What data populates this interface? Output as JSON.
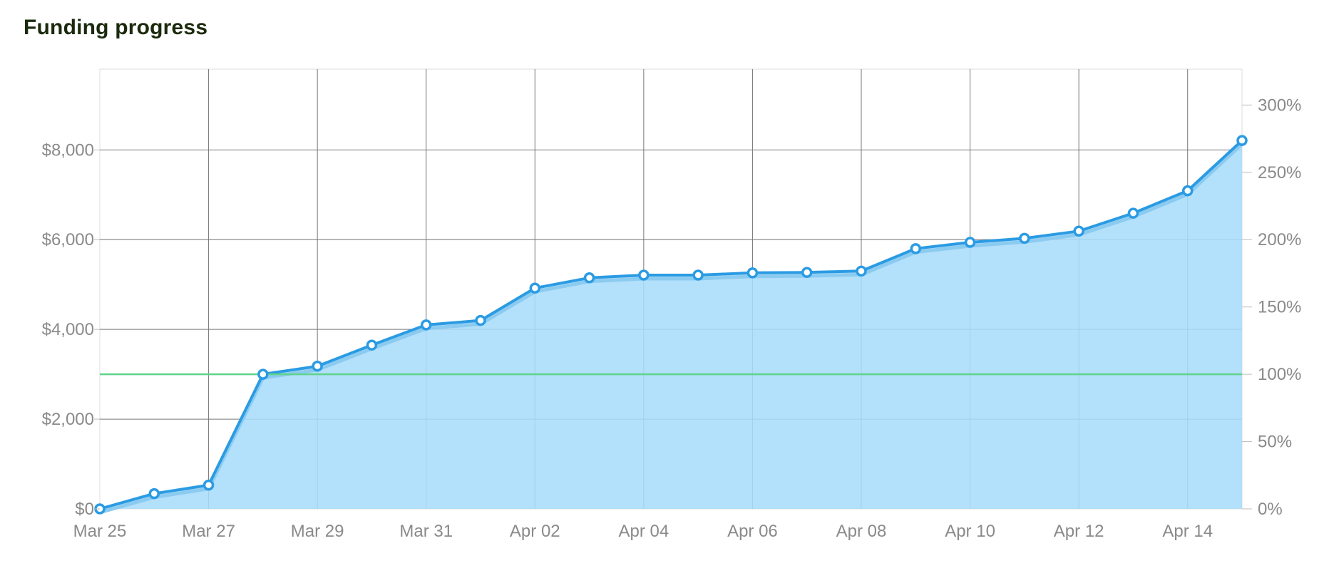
{
  "chart_data": {
    "type": "area",
    "title": "Funding progress",
    "x": [
      "Mar 25",
      "Mar 26",
      "Mar 27",
      "Mar 28",
      "Mar 29",
      "Mar 30",
      "Mar 31",
      "Apr 01",
      "Apr 02",
      "Apr 03",
      "Apr 04",
      "Apr 05",
      "Apr 06",
      "Apr 07",
      "Apr 08",
      "Apr 09",
      "Apr 10",
      "Apr 11",
      "Apr 12",
      "Apr 13",
      "Apr 14",
      "Apr 15"
    ],
    "x_tick_labels": [
      "Mar 25",
      "Mar 27",
      "Mar 29",
      "Mar 31",
      "Apr 02",
      "Apr 04",
      "Apr 06",
      "Apr 08",
      "Apr 10",
      "Apr 12",
      "Apr 14"
    ],
    "series": [
      {
        "values": [
          0,
          340,
          530,
          3000,
          3180,
          3650,
          4100,
          4200,
          4920,
          5150,
          5210,
          5210,
          5260,
          5270,
          5300,
          5800,
          5940,
          6030,
          6190,
          6590,
          7090,
          8210
        ]
      }
    ],
    "goal": {
      "value": 3000
    },
    "y_left": {
      "ticks": [
        0,
        2000,
        4000,
        6000,
        8000
      ],
      "tick_labels": [
        "$0",
        "$2,000",
        "$4,000",
        "$6,000",
        "$8,000"
      ],
      "ylim": [
        0,
        9800
      ]
    },
    "y_right": {
      "ticks": [
        0,
        50,
        100,
        150,
        200,
        250,
        300
      ],
      "tick_labels": [
        "0%",
        "50%",
        "100%",
        "150%",
        "200%",
        "250%",
        "300%"
      ],
      "ylim": [
        0,
        326.67
      ]
    },
    "grid": true,
    "colors": {
      "line": "#2b9be3",
      "fill": "#a8dcfa",
      "goal_line": "#5fd38a",
      "grid": "#777777",
      "tick_text": "#8a8a8a",
      "title": "#1a2a0d"
    }
  }
}
